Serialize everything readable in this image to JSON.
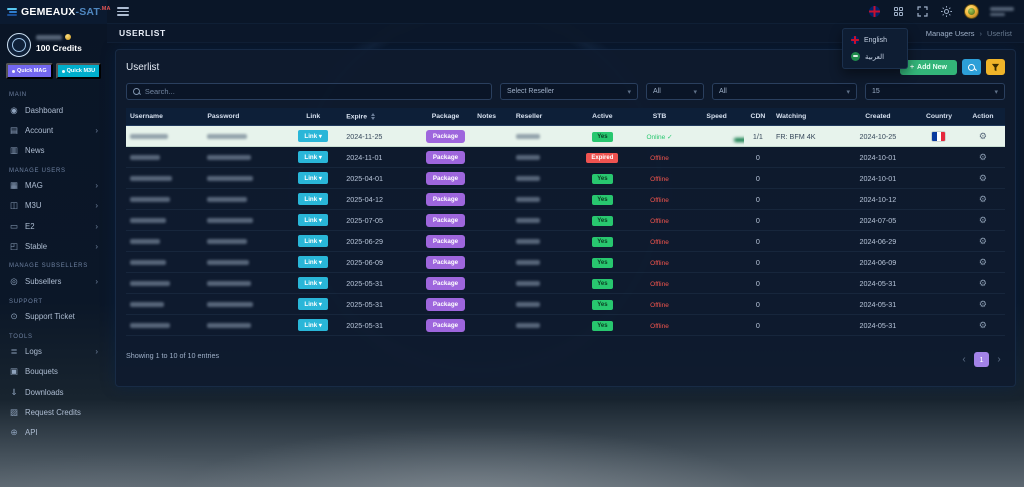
{
  "colors": {
    "accent_green": "#28c76f",
    "accent_red": "#ea5455",
    "accent_purple": "#9e66dd",
    "accent_cyan": "#29b6d8",
    "accent_yellow": "#f0b429",
    "accent_blue": "#2d9fd8",
    "page_active_purple": "#a383e8"
  },
  "topbar": {
    "logo": {
      "part1": "GEMEAUX",
      "part2": "-SAT",
      "part3": ".MA"
    },
    "page_title": "USERLIST",
    "breadcrumb": {
      "parent": "Manage Users",
      "separator": "›",
      "current": "Userlist"
    }
  },
  "lang_menu": {
    "items": [
      {
        "label": "English",
        "icon": "flag-uk-icon"
      },
      {
        "label": "العربية",
        "icon": "flag-green-icon"
      }
    ]
  },
  "sidebar": {
    "credits": "100 Credits",
    "quick_mag": "Quick MAG",
    "quick_m3u": "Quick M3U",
    "sections": [
      {
        "title": "MAIN",
        "items": [
          {
            "label": "Dashboard",
            "icon": "dashboard-icon",
            "arrow": false
          },
          {
            "label": "Account",
            "icon": "account-icon",
            "arrow": true
          },
          {
            "label": "News",
            "icon": "news-icon",
            "arrow": false
          }
        ]
      },
      {
        "title": "MANAGE USERS",
        "items": [
          {
            "label": "MAG",
            "icon": "mag-icon",
            "arrow": true
          },
          {
            "label": "M3U",
            "icon": "m3u-icon",
            "arrow": true
          },
          {
            "label": "E2",
            "icon": "e2-icon",
            "arrow": true
          },
          {
            "label": "Stable",
            "icon": "stable-icon",
            "arrow": true
          }
        ]
      },
      {
        "title": "MANAGE SUBSELLERS",
        "items": [
          {
            "label": "Subsellers",
            "icon": "subsellers-icon",
            "arrow": true
          }
        ]
      },
      {
        "title": "SUPPORT",
        "items": [
          {
            "label": "Support Ticket",
            "icon": "support-ticket-icon",
            "arrow": false
          }
        ]
      },
      {
        "title": "TOOLS",
        "items": [
          {
            "label": "Logs",
            "icon": "logs-icon",
            "arrow": true
          },
          {
            "label": "Bouquets",
            "icon": "bouquets-icon",
            "arrow": false
          },
          {
            "label": "Downloads",
            "icon": "downloads-icon",
            "arrow": false
          },
          {
            "label": "Request Credits",
            "icon": "request-credits-icon",
            "arrow": false
          },
          {
            "label": "API",
            "icon": "api-icon",
            "arrow": false
          }
        ]
      }
    ]
  },
  "card": {
    "title": "Userlist",
    "add_new": "Add New"
  },
  "filters": {
    "search_placeholder": "Search...",
    "reseller": "Select Reseller",
    "type_all": "All",
    "status_all": "All",
    "page_size": "15"
  },
  "table": {
    "headers": [
      "Username",
      "Password",
      "Link",
      "Expire",
      "Package",
      "Notes",
      "Reseller",
      "Active",
      "STB",
      "Speed",
      "CDN",
      "Watching",
      "Created",
      "Country",
      "Action"
    ],
    "link_label": "Link",
    "package_label": "Package",
    "stb_online_label": "Online",
    "stb_offline_label": "Offline",
    "rows": [
      {
        "expire": "2024-11-25",
        "active": "Yes",
        "stb": "Online",
        "cdn": "1/1",
        "watching": "FR: BFM 4K",
        "created": "2024-10-25",
        "country": "FR",
        "highlighted": true,
        "speed_full": true
      },
      {
        "expire": "2024-11-01",
        "active": "Expired",
        "stb": "Offline",
        "cdn": "0",
        "watching": "",
        "created": "2024-10-01",
        "country": "",
        "highlighted": false,
        "speed_full": false
      },
      {
        "expire": "2025-04-01",
        "active": "Yes",
        "stb": "Offline",
        "cdn": "0",
        "watching": "",
        "created": "2024-10-01",
        "country": "",
        "highlighted": false,
        "speed_full": false
      },
      {
        "expire": "2025-04-12",
        "active": "Yes",
        "stb": "Offline",
        "cdn": "0",
        "watching": "",
        "created": "2024-10-12",
        "country": "",
        "highlighted": false,
        "speed_full": false
      },
      {
        "expire": "2025-07-05",
        "active": "Yes",
        "stb": "Offline",
        "cdn": "0",
        "watching": "",
        "created": "2024-07-05",
        "country": "",
        "highlighted": false,
        "speed_full": false
      },
      {
        "expire": "2025-06-29",
        "active": "Yes",
        "stb": "Offline",
        "cdn": "0",
        "watching": "",
        "created": "2024-06-29",
        "country": "",
        "highlighted": false,
        "speed_full": false
      },
      {
        "expire": "2025-06-09",
        "active": "Yes",
        "stb": "Offline",
        "cdn": "0",
        "watching": "",
        "created": "2024-06-09",
        "country": "",
        "highlighted": false,
        "speed_full": false
      },
      {
        "expire": "2025-05-31",
        "active": "Yes",
        "stb": "Offline",
        "cdn": "0",
        "watching": "",
        "created": "2024-05-31",
        "country": "",
        "highlighted": false,
        "speed_full": false
      },
      {
        "expire": "2025-05-31",
        "active": "Yes",
        "stb": "Offline",
        "cdn": "0",
        "watching": "",
        "created": "2024-05-31",
        "country": "",
        "highlighted": false,
        "speed_full": false
      },
      {
        "expire": "2025-05-31",
        "active": "Yes",
        "stb": "Offline",
        "cdn": "0",
        "watching": "",
        "created": "2024-05-31",
        "country": "",
        "highlighted": false,
        "speed_full": false
      }
    ]
  },
  "footer": {
    "showing": "Showing 1 to 10 of 10 entries",
    "prev": "‹",
    "next": "›",
    "pages": [
      "1"
    ]
  }
}
